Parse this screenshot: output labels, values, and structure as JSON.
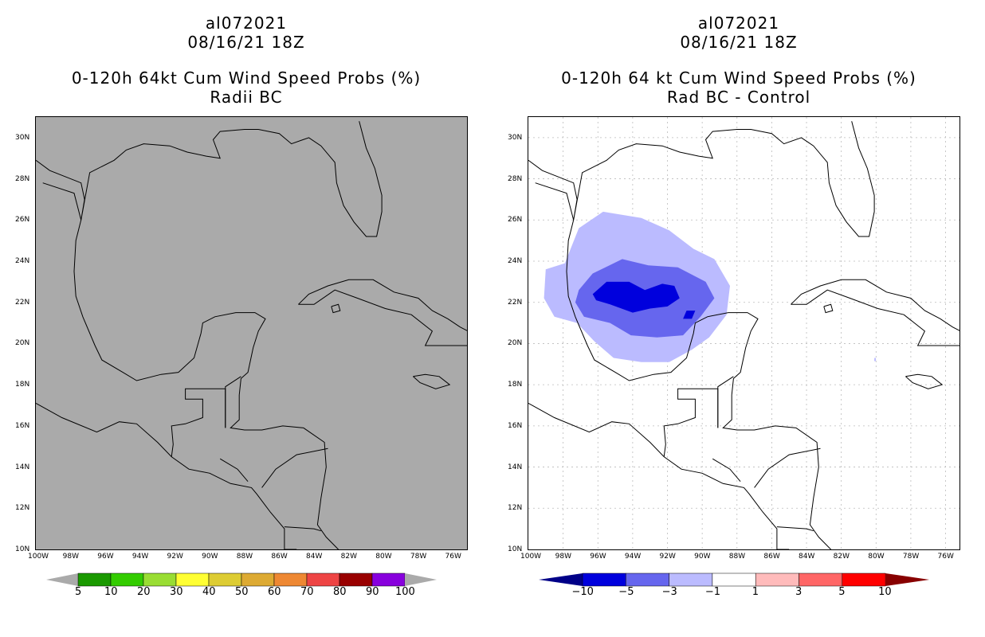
{
  "panels": [
    {
      "storm_id": "al072021",
      "datetime": "08/16/21 18Z",
      "product": "0-120h 64kt Cum Wind Speed Probs (%)",
      "subtitle": "Radii BC",
      "background": "#aaaaaa"
    },
    {
      "storm_id": "al072021",
      "datetime": "08/16/21 18Z",
      "product": "0-120h 64 kt Cum Wind Speed Probs (%)",
      "subtitle": "Rad BC - Control",
      "background": "#ffffff"
    }
  ],
  "axes": {
    "lat_labels": [
      "30N",
      "28N",
      "26N",
      "24N",
      "22N",
      "20N",
      "18N",
      "16N",
      "14N",
      "12N",
      "10N"
    ],
    "lon_labels": [
      "100W",
      "98W",
      "96W",
      "94W",
      "92W",
      "90W",
      "88W",
      "86W",
      "84W",
      "82W",
      "80W",
      "78W",
      "76W"
    ],
    "lat_range": [
      10,
      31
    ],
    "lon_range": [
      -100,
      -75.2
    ]
  },
  "colorbar_left": {
    "labels": [
      "5",
      "10",
      "20",
      "30",
      "40",
      "50",
      "60",
      "70",
      "80",
      "90",
      "100"
    ],
    "colors": [
      "#1a9900",
      "#33cc00",
      "#99dd33",
      "#ffff33",
      "#ddcc33",
      "#ddaa33",
      "#ee8833",
      "#ee4444",
      "#990000",
      "#8800dd"
    ],
    "end_color": "#aaaaaa"
  },
  "colorbar_right": {
    "labels": [
      "-10",
      "-5",
      "-3",
      "-1",
      "1",
      "3",
      "5",
      "10"
    ],
    "colors": [
      "#0000dd",
      "#6666ee",
      "#bbbbff",
      "#ffffff",
      "#ffbbbb",
      "#ff6666",
      "#ff0000"
    ],
    "low_color": "#000088",
    "high_color": "#880000"
  },
  "diff_contours": [
    {
      "level": "-1 to -3",
      "color": "#bbbbff"
    },
    {
      "level": "-3 to -5",
      "color": "#6666ee"
    },
    {
      "level": "-5 to -10",
      "color": "#0000dd"
    }
  ]
}
